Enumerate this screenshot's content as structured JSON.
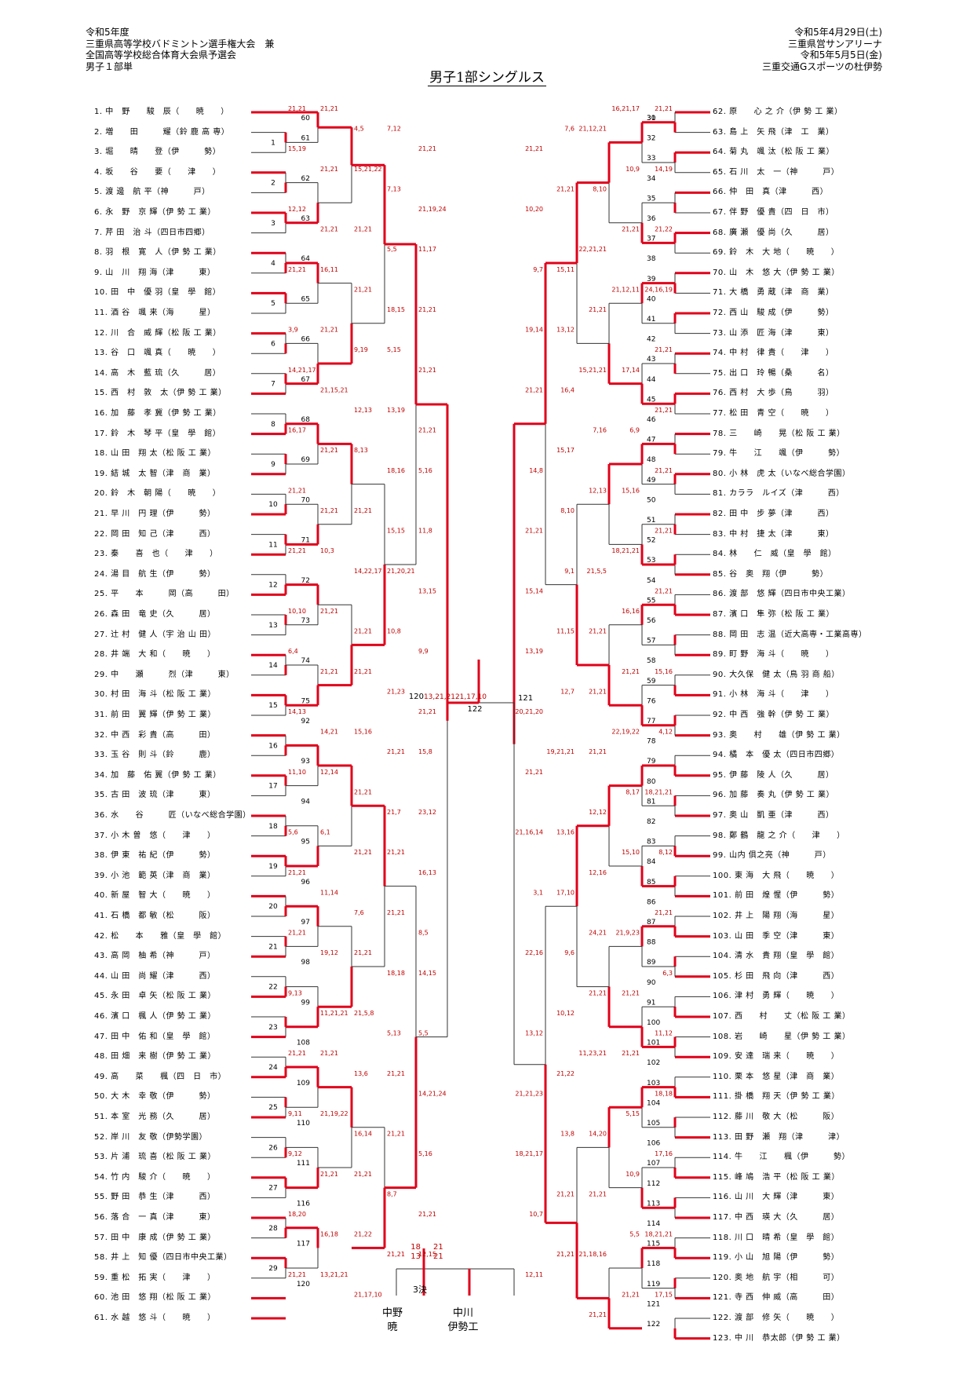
{
  "header_left": [
    "令和5年度",
    "三重県高等学校バドミントン選手権大会　兼",
    "全国高等学校総合体育大会県予選会",
    "男子１部単"
  ],
  "header_right": [
    "令和5年4月29日(土)",
    "三重県営サンアリーナ",
    "令和5年5月5日(金)",
    "三重交通Gスポーツの杜伊勢"
  ],
  "title": "男子1部シングルス",
  "left_players": [
    "1. 中　野　　駿　辰（　　暁　　）",
    "2. 増　　田　　　耀（鈴 鹿 高 専）",
    "3. 堀　　晴　　登（伊　　　勢）",
    "4. 坂　　谷　　要（　　津　　）",
    "5. 渡 邊　航 平（神　　　戸）",
    "6. 永　野　京 輝（伊 勢 工 業）",
    "7. 芹 田　治 斗（四日市四郷）",
    "8. 羽　根　寛　人（伊 勢 工 業）",
    "9. 山　川　翔 海（津　　　東）",
    "10. 田　中　優 羽（皇　學　館）",
    "11. 酒 谷　颯 来（海　　　星）",
    "12. 川　合　威 輝（松 阪 工 業）",
    "13. 谷　口　颯 真（　　暁　　）",
    "14. 高　木　藍 琉（久　　　居）",
    "15. 西　村　敦　太（伊 勢 工 業）",
    "16. 加　藤　孝 冀（伊 勢 工 業）",
    "17. 鈴　木　琴 平（皇　學　館）",
    "18. 山 田　翔 太（松 阪 工 業）",
    "19. 結 城　太 智（津　商　業）",
    "20. 鈴　木　朝 陽（　　暁　　）",
    "21. 早 川　円 理（伊　　　勢）",
    "22. 岡 田　知 己（津　　　西）",
    "23. 秦　　喜　也（　　津　　）",
    "24. 湯 目　航 生（伊　　　勢）",
    "25. 平　　本　　　岡（高　　　田）",
    "26. 森 田　竜 史（久　　　居）",
    "27. 辻 村　健 人（宇 治 山 田）",
    "28. 井 端　大 和（　　暁　　）",
    "29. 中　　瀬　　　烈（津　　　東）",
    "30. 村 田　海 斗（松 阪 工 業）",
    "31. 前 田　翼 輝（伊 勢 工 業）",
    "32. 中 西　彩 貴（高　　　田）",
    "33. 玉 谷　則 斗（鈴　　　鹿）",
    "34. 加　藤　佑 翼（伊 勢 工 業）",
    "35. 古 田　波 琉（津　　　東）",
    "36. 水　　谷　　　匠（いなべ総合学園）",
    "37. 小 木 曽　悠（　　津　　）",
    "38. 伊 東　祐 紀（伊　　　勢）",
    "39. 小 池　範 英（津　商　業）",
    "40. 新 屋　智 大（　　暁　　）",
    "41. 石 橋　都 敏（松　　　阪）",
    "42. 松　　本　　雅（皇　學　館）",
    "43. 高 岡　柚 希（神　　　戸）",
    "44. 山 田　尚 耀（津　　　西）",
    "45. 永 田　卓 矢（松 阪 工 業）",
    "46. 濱 口　楓 人（伊 勢 工 業）",
    "47. 田 中　佑 和（皇　學　館）",
    "48. 田 畑　来 樹（伊 勢 工 業）",
    "49. 高　　菜　　楓（四　日　市）",
    "50. 大 木　幸 敬（伊　　　勢）",
    "51. 本 室　光 務（久　　　居）",
    "52. 岸 川　友 敬（伊勢学園）",
    "53. 片 浦　琉 喜（松 阪 工 業）",
    "54. 竹 内　駿 介（　　暁　　）",
    "55. 野 田　恭 生（津　　　西）",
    "56. 落 合　一 真（津　　　東）",
    "57. 田 中　康 成（伊 勢 工 業）",
    "58. 井 上　知 優（四日市中央工業）",
    "59. 重 松　拓 実（　　津　　）",
    "60. 池 田　悠 翔（松 阪 工 業）",
    "61. 水 越　悠 斗（　　暁　　）"
  ],
  "right_players": [
    "62. 原　　心 之 介（伊 勢 工 業）",
    "63. 島 上　矢 飛（津　工　業）",
    "64. 菊 丸　颯 汰（松 阪 工 業）",
    "65. 石 川　太　一（神　　　戸）",
    "66. 仲　田　真（津　　　西）",
    "67. 伴 野　優 貴（四　日　市）",
    "68. 廣 瀬　優 尚（久　　　居）",
    "69. 鈴　木　大 地（　　暁　　）",
    "70. 山　木　悠 大（伊 勢 工 業）",
    "71. 大 橋　勇 蔵（津　商　業）",
    "72. 西 山　駿 成（伊　　　勢）",
    "73. 山 添　匠 海（津　　　東）",
    "74. 中 村　律 貴（　　津　　）",
    "75. 出 口　玲 暢（桑　　　名）",
    "76. 西 村　大 歩（鳥　　　羽）",
    "77. 松 田　青 空（　　暁　　）",
    "78. 三　　崎　　晃（松 阪 工 業）",
    "79. 牛　　江　　颯（伊　　　勢）",
    "80. 小 林　虎 太（いなべ総合学園）",
    "81. カララ　ルイズ（津　　　西）",
    "82. 田 中　步 夢（津　　　西）",
    "83. 中 村　捷 太（津　　　東）",
    "84. 林　　仁　威（皇　學　館）",
    "85. 谷　奥　翔（伊　　　勢）",
    "86. 渡 部　悠 輝（四日市中央工業）",
    "87. 濱 口　隼 弥（松 阪 工 業）",
    "88. 岡 田　志 温（近大高専・工業高専）",
    "89. 町 野　海 斗（　　暁　　）",
    "90. 大久保　健 太（鳥 羽 商 船）",
    "91. 小 林　海 斗（　　津　　）",
    "92. 中 西　強 幹（伊 勢 工 業）",
    "93. 奥　　村　　雄（伊 勢 工 業）",
    "94. 橘　本　優 太（四日市四郷）",
    "95. 伊 藤　陵 人（久　　　居）",
    "96. 加 藤　奏 丸（伊 勢 工 業）",
    "97. 奥 山　凱 亜（津　　　西）",
    "98. 鄭 鶴　龍 之 介（　　津　　）",
    "99. 山内 俱之亮（神　　　戸）",
    "100. 東 海　大 飛（　　暁　　）",
    "101. 前 田　煌 惺（伊　　　勢）",
    "102. 井 上　陽 翔（海　　　星）",
    "103. 山 田　季 空（津　　　東）",
    "104. 清 水　貴 翔（皇　學　館）",
    "105. 杉 田　飛 向（津　　　西）",
    "106. 津 村　勇 輝（　　暁　　）",
    "107. 西　　村　　丈（松 阪 工 業）",
    "108. 岩　　崎　　星（伊 勢 工 業）",
    "109. 安 達　瑞 来（　　暁　　）",
    "110. 栗 本　悠 星（津　商　業）",
    "111. 掛 橋　翔 天（伊 勢 工 業）",
    "112. 藤 川　敬 大（松　　　阪）",
    "113. 田 野　瀬　翔（津　　　津）",
    "114. 牛　　江　　楓（伊　　　勢）",
    "115. 峰 鳩　浩 平（松 阪 工 業）",
    "116. 山 川　大 輝（津　　　東）",
    "117. 中 西　瑛 大（久　　　居）",
    "118. 川 口　晴 希（皇　學　館）",
    "119. 小 山　旭 陽（伊　　　勢）",
    "120. 奥 地　航 宇（相　　　可）",
    "121. 寺 西　伸 威（高　　　田）",
    "122. 渡 部　修 矢（　　暁　　）",
    "123. 中 川　恭太郎（伊 勢 工 業）"
  ],
  "left_match_numbers": [
    "1",
    "2",
    "3",
    "4",
    "5",
    "6",
    "7",
    "8",
    "9",
    "10",
    "11",
    "12",
    "13",
    "14",
    "15",
    "16",
    "17",
    "18",
    "19",
    "20",
    "21",
    "22",
    "23",
    "24",
    "25",
    "26",
    "27",
    "28",
    "29",
    "60",
    "61",
    "62",
    "63",
    "64",
    "65",
    "66",
    "67",
    "68",
    "69",
    "70",
    "71",
    "72",
    "73",
    "74",
    "75",
    "92",
    "93",
    "94",
    "95",
    "96",
    "97",
    "98",
    "99",
    "108",
    "109",
    "110",
    "111",
    "116",
    "117",
    "120"
  ],
  "right_match_numbers": [
    "30",
    "31",
    "32",
    "33",
    "34",
    "35",
    "36",
    "37",
    "38",
    "39",
    "40",
    "41",
    "42",
    "43",
    "44",
    "45",
    "46",
    "47",
    "48",
    "49",
    "50",
    "51",
    "52",
    "53",
    "54",
    "55",
    "56",
    "57",
    "58",
    "59",
    "76",
    "77",
    "78",
    "79",
    "80",
    "81",
    "82",
    "83",
    "84",
    "85",
    "86",
    "87",
    "88",
    "89",
    "90",
    "91",
    "100",
    "101",
    "102",
    "103",
    "104",
    "105",
    "106",
    "107",
    "112",
    "113",
    "114",
    "115",
    "118",
    "119",
    "121",
    "122"
  ],
  "left_scores": [
    "21,21",
    "21,21",
    "4,5",
    "7,12",
    "21,21",
    "15,19",
    "21,21",
    "15,21,22",
    "7,13",
    "21,19,24",
    "12,12",
    "21,21",
    "21,21",
    "5,5",
    "11,17",
    "21,21",
    "16,11",
    "21,21",
    "18,15",
    "21,21",
    "3,9",
    "21,21",
    "9,19",
    "5,15",
    "21,21",
    "14,21,17",
    "21,15,21",
    "12,13",
    "13,19",
    "21,21",
    "16,17",
    "21,21",
    "8,13",
    "18,16",
    "5,16",
    "21,21",
    "21,21",
    "21,21",
    "15,15",
    "11,8",
    "21,21",
    "10,3",
    "14,22,17",
    "21,20,21",
    "13,15",
    "10,10",
    "21,21",
    "21,21",
    "10,8",
    "9,9",
    "6,4",
    "21,21",
    "21,21",
    "21,23",
    "21,21",
    "14,13",
    "14,21",
    "15,16",
    "21,21",
    "15,8",
    "11,10",
    "12,14",
    "21,21",
    "21,7",
    "23,12",
    "5,6",
    "6,1",
    "21,21",
    "21,21",
    "16,13",
    "21,21",
    "11,14",
    "7,6",
    "21,21",
    "8,5",
    "21,21",
    "19,12",
    "21,21",
    "18,18",
    "14,15",
    "9,13",
    "11,21,21",
    "21,5,8",
    "5,13",
    "5,5",
    "21,21",
    "21,21",
    "13,6",
    "21,21",
    "14,21,24",
    "9,11",
    "21,19,22",
    "16,14",
    "21,21",
    "5,16",
    "9,12",
    "21,21",
    "21,21",
    "8,7",
    "21,21",
    "18,20",
    "16,18",
    "21,22",
    "21,21",
    "12,15",
    "21,21",
    "13,21,21",
    "21,17,10"
  ],
  "right_scores": [
    "21,21",
    "16,21,17",
    "21,12,21",
    "7,6",
    "21,21",
    "14,19",
    "10,9",
    "8,10",
    "21,21",
    "10,20",
    "21,22",
    "21,21",
    "22,21,21",
    "15,11",
    "9,7",
    "24,16,19",
    "21,12,11",
    "21,21",
    "13,12",
    "19,14",
    "21,21",
    "17,14",
    "15,21,21",
    "16,4",
    "21,21",
    "21,21",
    "6,9",
    "7,16",
    "15,17",
    "14,8",
    "21,21",
    "15,16",
    "12,13",
    "8,10",
    "21,21",
    "21,21",
    "18,21,21",
    "21,5,5",
    "9,1",
    "15,14",
    "21,21",
    "16,16",
    "21,21",
    "11,15",
    "13,19",
    "15,16",
    "21,21",
    "21,21",
    "12,7",
    "20,21,20",
    "4,12",
    "22,19,22",
    "21,21",
    "19,21,21",
    "21,21",
    "18,21,21",
    "8,17",
    "12,12",
    "13,16",
    "21,16,14",
    "8,12",
    "15,10",
    "12,16",
    "17,10",
    "3,1",
    "21,21",
    "21,9,23",
    "24,21",
    "9,6",
    "22,16",
    "6,3",
    "21,21",
    "21,21",
    "10,12",
    "13,12",
    "11,12",
    "21,21",
    "11,23,21",
    "21,22",
    "21,21,23",
    "18,18",
    "5,15",
    "14,20",
    "13,8",
    "18,21,17",
    "17,16",
    "10,9",
    "21,21",
    "21,21",
    "10,7",
    "18,21,21",
    "5,5",
    "21,18,16",
    "21,21",
    "12,11",
    "17,15",
    "21,21",
    "21,21"
  ],
  "final_scores": {
    "top": "18",
    "bottom": "13",
    "top_r": "21",
    "bottom_r": "21"
  },
  "third_place_label": "3決",
  "final_names": {
    "left_name": "中野",
    "left_school": "暁",
    "right_name": "中川",
    "right_school": "伊勢工"
  },
  "accent": "#e0001a"
}
